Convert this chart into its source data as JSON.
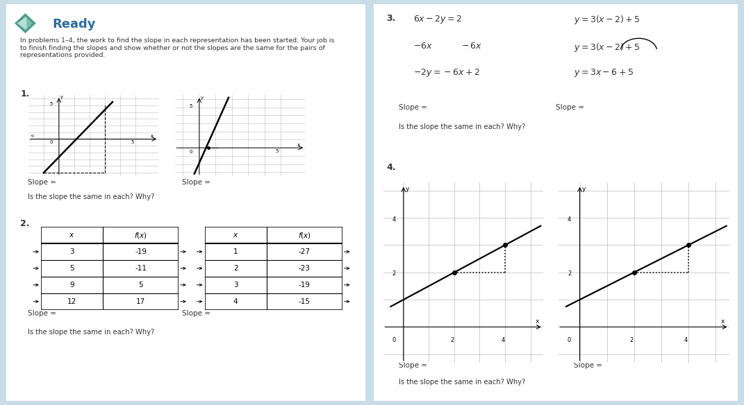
{
  "bg_outer": "#c8dde8",
  "bg_left": "#ffffff",
  "bg_right": "#ffffff",
  "title_text": "Ready",
  "title_color": "#2d6e9e",
  "instruction_text": "In problems 1–4, the work to find the slope in each representation has been started. Your job is\nto finish finding the slopes and show whether or not the slopes are the same for the pairs of\nrepresentations provided.",
  "slope_eq_text": "Slope =",
  "same_slope_text": "Is the slope the same in each? Why?",
  "table2_left_rows": [
    [
      "3",
      "-19"
    ],
    [
      "5",
      "-11"
    ],
    [
      "9",
      "5"
    ],
    [
      "12",
      "17"
    ]
  ],
  "table2_right_rows": [
    [
      "1",
      "-27"
    ],
    [
      "2",
      "-23"
    ],
    [
      "3",
      "-19"
    ],
    [
      "4",
      "-15"
    ]
  ],
  "text_color": "#333333",
  "grid_color": "#bbbbbb",
  "line_color": "#111111"
}
